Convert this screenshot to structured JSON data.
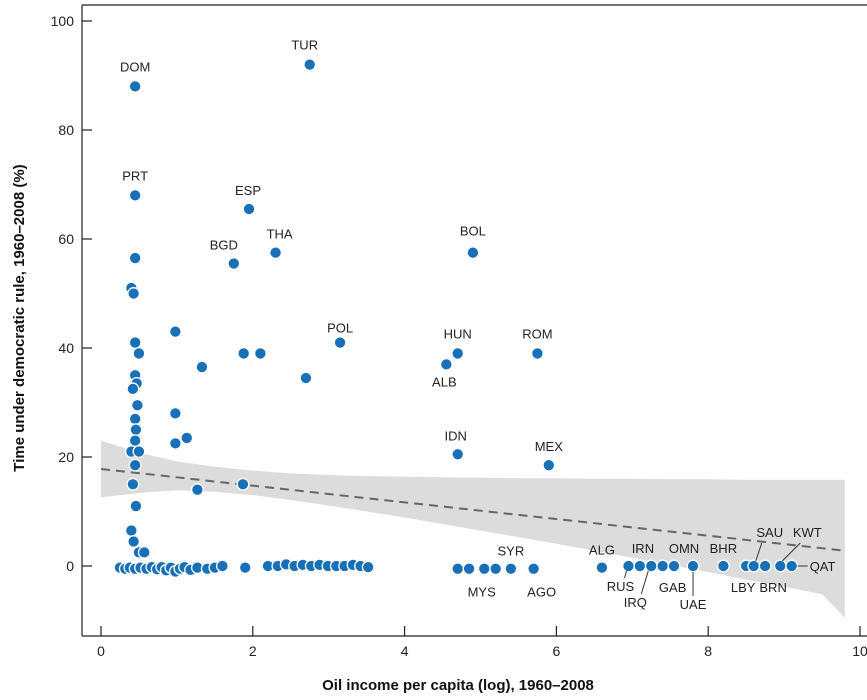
{
  "chart_data": {
    "type": "scatter",
    "title": "",
    "xlabel": "Oil income per capita (log), 1960–2008",
    "ylabel": "Time under democratic rule, 1960–2008 (%)",
    "xlim": [
      -0.3,
      10
    ],
    "ylim": [
      -13,
      102
    ],
    "xticks": [
      0,
      2,
      4,
      6,
      8,
      10
    ],
    "yticks": [
      0,
      20,
      40,
      60,
      80,
      100
    ],
    "grid": false,
    "point_color": "#1770b8",
    "trend_color": "#666666",
    "band_color": "#dcdcdc",
    "trend_line": {
      "x": [
        0,
        9.8
      ],
      "y": [
        17.8,
        2.8
      ]
    },
    "confidence_band": {
      "x": [
        0,
        0.5,
        1,
        1.5,
        2,
        2.5,
        3,
        3.5,
        4,
        4.5,
        5,
        5.5,
        6,
        6.5,
        7,
        7.5,
        8,
        8.5,
        9,
        9.5,
        9.8
      ],
      "upper": [
        23,
        20.8,
        19.2,
        18.2,
        17.5,
        17.0,
        16.7,
        16.5,
        16.4,
        16.3,
        16.2,
        16.1,
        16.1,
        16.0,
        16.0,
        15.9,
        15.9,
        15.8,
        15.8,
        15.8,
        15.8
      ],
      "lower": [
        12.6,
        13.4,
        13.9,
        13.6,
        13.0,
        12.1,
        11.1,
        10.0,
        8.9,
        7.7,
        6.5,
        5.3,
        4.1,
        2.8,
        1.5,
        0.2,
        -1.1,
        -2.5,
        -3.8,
        -5.2,
        -9.5
      ]
    },
    "labeled_points": [
      {
        "label": "DOM",
        "x": 0.45,
        "y": 88
      },
      {
        "label": "TUR",
        "x": 2.75,
        "y": 92
      },
      {
        "label": "PRT",
        "x": 0.45,
        "y": 68
      },
      {
        "label": "ESP",
        "x": 1.95,
        "y": 65.5
      },
      {
        "label": "BGD",
        "x": 1.75,
        "y": 55.5
      },
      {
        "label": "THA",
        "x": 2.3,
        "y": 57.5
      },
      {
        "label": "BOL",
        "x": 4.9,
        "y": 57.5
      },
      {
        "label": "POL",
        "x": 3.15,
        "y": 41
      },
      {
        "label": "HUN",
        "x": 4.7,
        "y": 39
      },
      {
        "label": "ROM",
        "x": 5.75,
        "y": 39
      },
      {
        "label": "ALB",
        "x": 4.55,
        "y": 37
      },
      {
        "label": "IDN",
        "x": 4.7,
        "y": 20.5
      },
      {
        "label": "MEX",
        "x": 5.9,
        "y": 18.5
      },
      {
        "label": "SYR",
        "x": 5.4,
        "y": -0.5
      },
      {
        "label": "MYS",
        "x": 5.2,
        "y": -0.5
      },
      {
        "label": "AGO",
        "x": 5.7,
        "y": -0.5
      },
      {
        "label": "ALG",
        "x": 6.6,
        "y": -0.3
      },
      {
        "label": "RUS",
        "x": 6.95,
        "y": 0
      },
      {
        "label": "IRN",
        "x": 7.1,
        "y": 0
      },
      {
        "label": "IRQ",
        "x": 7.25,
        "y": 0
      },
      {
        "label": "GAB",
        "x": 7.4,
        "y": 0
      },
      {
        "label": "OMN",
        "x": 7.55,
        "y": 0
      },
      {
        "label": "UAE",
        "x": 7.8,
        "y": 0
      },
      {
        "label": "BHR",
        "x": 8.2,
        "y": 0
      },
      {
        "label": "LBY",
        "x": 8.5,
        "y": 0
      },
      {
        "label": "SAU",
        "x": 8.6,
        "y": 0
      },
      {
        "label": "BRN",
        "x": 8.75,
        "y": 0
      },
      {
        "label": "KWT",
        "x": 8.95,
        "y": 0
      },
      {
        "label": "QAT",
        "x": 9.1,
        "y": 0
      }
    ],
    "points": [
      {
        "x": 0.4,
        "y": 51
      },
      {
        "x": 0.43,
        "y": 50
      },
      {
        "x": 0.45,
        "y": 56.5
      },
      {
        "x": 0.45,
        "y": 41
      },
      {
        "x": 0.5,
        "y": 39
      },
      {
        "x": 0.45,
        "y": 35
      },
      {
        "x": 0.47,
        "y": 33.5
      },
      {
        "x": 0.42,
        "y": 32.5
      },
      {
        "x": 0.48,
        "y": 29.5
      },
      {
        "x": 0.45,
        "y": 27
      },
      {
        "x": 0.46,
        "y": 25
      },
      {
        "x": 0.45,
        "y": 23
      },
      {
        "x": 0.4,
        "y": 21
      },
      {
        "x": 0.5,
        "y": 21
      },
      {
        "x": 0.45,
        "y": 18.5
      },
      {
        "x": 0.42,
        "y": 15
      },
      {
        "x": 0.46,
        "y": 11
      },
      {
        "x": 0.4,
        "y": 6.5
      },
      {
        "x": 0.43,
        "y": 4.5
      },
      {
        "x": 0.5,
        "y": 2.5
      },
      {
        "x": 0.57,
        "y": 2.5
      },
      {
        "x": 0.98,
        "y": 43
      },
      {
        "x": 0.98,
        "y": 28
      },
      {
        "x": 0.98,
        "y": 22.5
      },
      {
        "x": 1.13,
        "y": 23.5
      },
      {
        "x": 1.27,
        "y": 14
      },
      {
        "x": 1.33,
        "y": 36.5
      },
      {
        "x": 1.88,
        "y": 39
      },
      {
        "x": 2.1,
        "y": 39
      },
      {
        "x": 1.87,
        "y": 15
      },
      {
        "x": 2.7,
        "y": 34.5
      },
      {
        "x": 0.25,
        "y": -0.3
      },
      {
        "x": 0.32,
        "y": -0.5
      },
      {
        "x": 0.38,
        "y": -0.3
      },
      {
        "x": 0.45,
        "y": -0.5
      },
      {
        "x": 0.52,
        "y": -0.3
      },
      {
        "x": 0.6,
        "y": -0.5
      },
      {
        "x": 0.67,
        "y": -0.2
      },
      {
        "x": 0.74,
        "y": -0.6
      },
      {
        "x": 0.8,
        "y": -0.2
      },
      {
        "x": 0.86,
        "y": -0.8
      },
      {
        "x": 0.92,
        "y": -0.3
      },
      {
        "x": 0.98,
        "y": -1
      },
      {
        "x": 1.04,
        "y": -0.5
      },
      {
        "x": 1.1,
        "y": -0.2
      },
      {
        "x": 1.18,
        "y": -0.7
      },
      {
        "x": 1.27,
        "y": -0.3
      },
      {
        "x": 1.4,
        "y": -0.5
      },
      {
        "x": 1.5,
        "y": -0.3
      },
      {
        "x": 1.6,
        "y": 0
      },
      {
        "x": 1.9,
        "y": -0.3
      },
      {
        "x": 2.2,
        "y": 0
      },
      {
        "x": 2.33,
        "y": 0
      },
      {
        "x": 2.44,
        "y": 0.3
      },
      {
        "x": 2.55,
        "y": 0
      },
      {
        "x": 2.66,
        "y": 0.2
      },
      {
        "x": 2.77,
        "y": 0
      },
      {
        "x": 2.88,
        "y": 0.2
      },
      {
        "x": 2.99,
        "y": 0
      },
      {
        "x": 3.1,
        "y": 0
      },
      {
        "x": 3.21,
        "y": 0
      },
      {
        "x": 3.32,
        "y": 0.2
      },
      {
        "x": 3.42,
        "y": 0
      },
      {
        "x": 3.52,
        "y": -0.2
      },
      {
        "x": 4.7,
        "y": -0.5
      },
      {
        "x": 4.85,
        "y": -0.5
      },
      {
        "x": 5.05,
        "y": -0.5
      }
    ]
  }
}
